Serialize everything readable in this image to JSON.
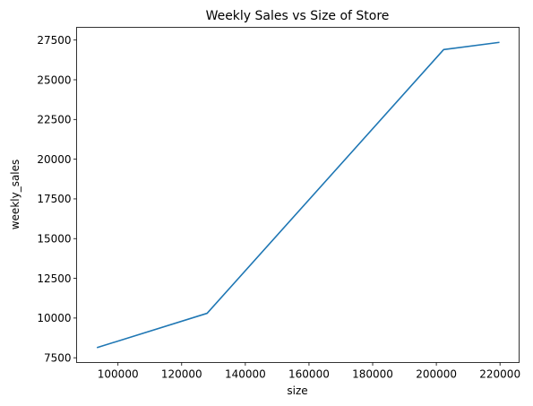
{
  "chart_data": {
    "type": "line",
    "title": "Weekly Sales vs Size of Store",
    "xlabel": "size",
    "ylabel": "weekly_sales",
    "xlim": [
      87000,
      226000
    ],
    "ylim": [
      7200,
      28300
    ],
    "x_ticks": [
      100000,
      120000,
      140000,
      160000,
      180000,
      200000,
      220000
    ],
    "x_tick_labels": [
      "100000",
      "120000",
      "140000",
      "160000",
      "180000",
      "200000",
      "220000"
    ],
    "y_ticks": [
      7500,
      10000,
      12500,
      15000,
      17500,
      20000,
      22500,
      25000,
      27500
    ],
    "y_tick_labels": [
      "7500",
      "10000",
      "12500",
      "15000",
      "17500",
      "20000",
      "22500",
      "25000",
      "27500"
    ],
    "grid": false,
    "series": [
      {
        "color": "#1f77b4",
        "x": [
          93600,
          128000,
          202300,
          219600
        ],
        "y": [
          8150,
          10300,
          26900,
          27350
        ]
      }
    ]
  }
}
